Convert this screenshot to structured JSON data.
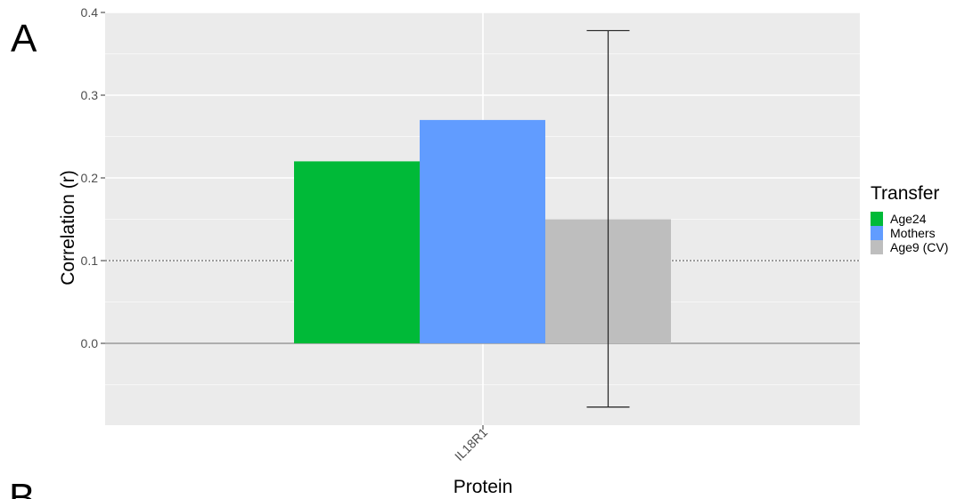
{
  "panel_labels": [
    "A",
    "B"
  ],
  "chart_data": {
    "type": "bar",
    "categories": [
      "IL18R1"
    ],
    "series": [
      {
        "name": "Age24",
        "values": [
          0.22
        ],
        "color": "#00BA38"
      },
      {
        "name": "Mothers",
        "values": [
          0.27
        ],
        "color": "#619CFF"
      },
      {
        "name": "Age9 (CV)",
        "values": [
          0.15
        ],
        "color": "#BEBEBE",
        "error_bar": [
          -0.077,
          0.378
        ]
      }
    ],
    "xlabel": "Protein",
    "ylabel": "Correlation (r)",
    "ylim": [
      -0.1,
      0.4
    ],
    "y_ticks": [
      "0.0",
      "0.1",
      "0.2",
      "0.3",
      "0.4"
    ],
    "reference_line": {
      "y": 0.1,
      "style": "dotted"
    },
    "zero_line": {
      "y": 0.0
    },
    "legend": {
      "title": "Transfer",
      "position": "right"
    },
    "grid": true,
    "panel_background": "#EBEBEB"
  }
}
